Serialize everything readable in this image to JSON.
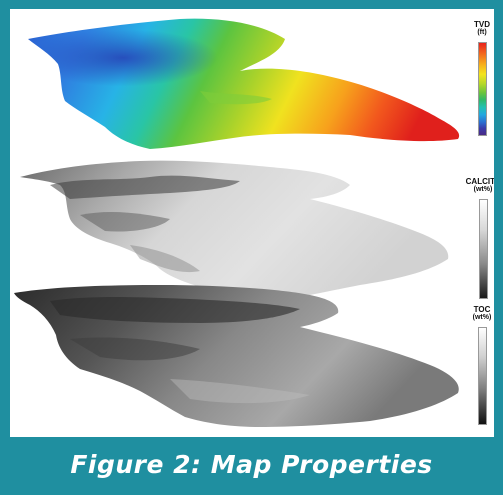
{
  "legends": {
    "tvd": {
      "title": "TVD",
      "unit": "(ft)"
    },
    "calcite": {
      "title": "CALCITE",
      "unit": "(wt%)"
    },
    "toc": {
      "title": "TOC",
      "unit": "(wt%)"
    }
  },
  "caption": "Figure 2: Map Properties",
  "colors": {
    "frame": "#1f8fa0",
    "caption_text": "#ffffff"
  }
}
